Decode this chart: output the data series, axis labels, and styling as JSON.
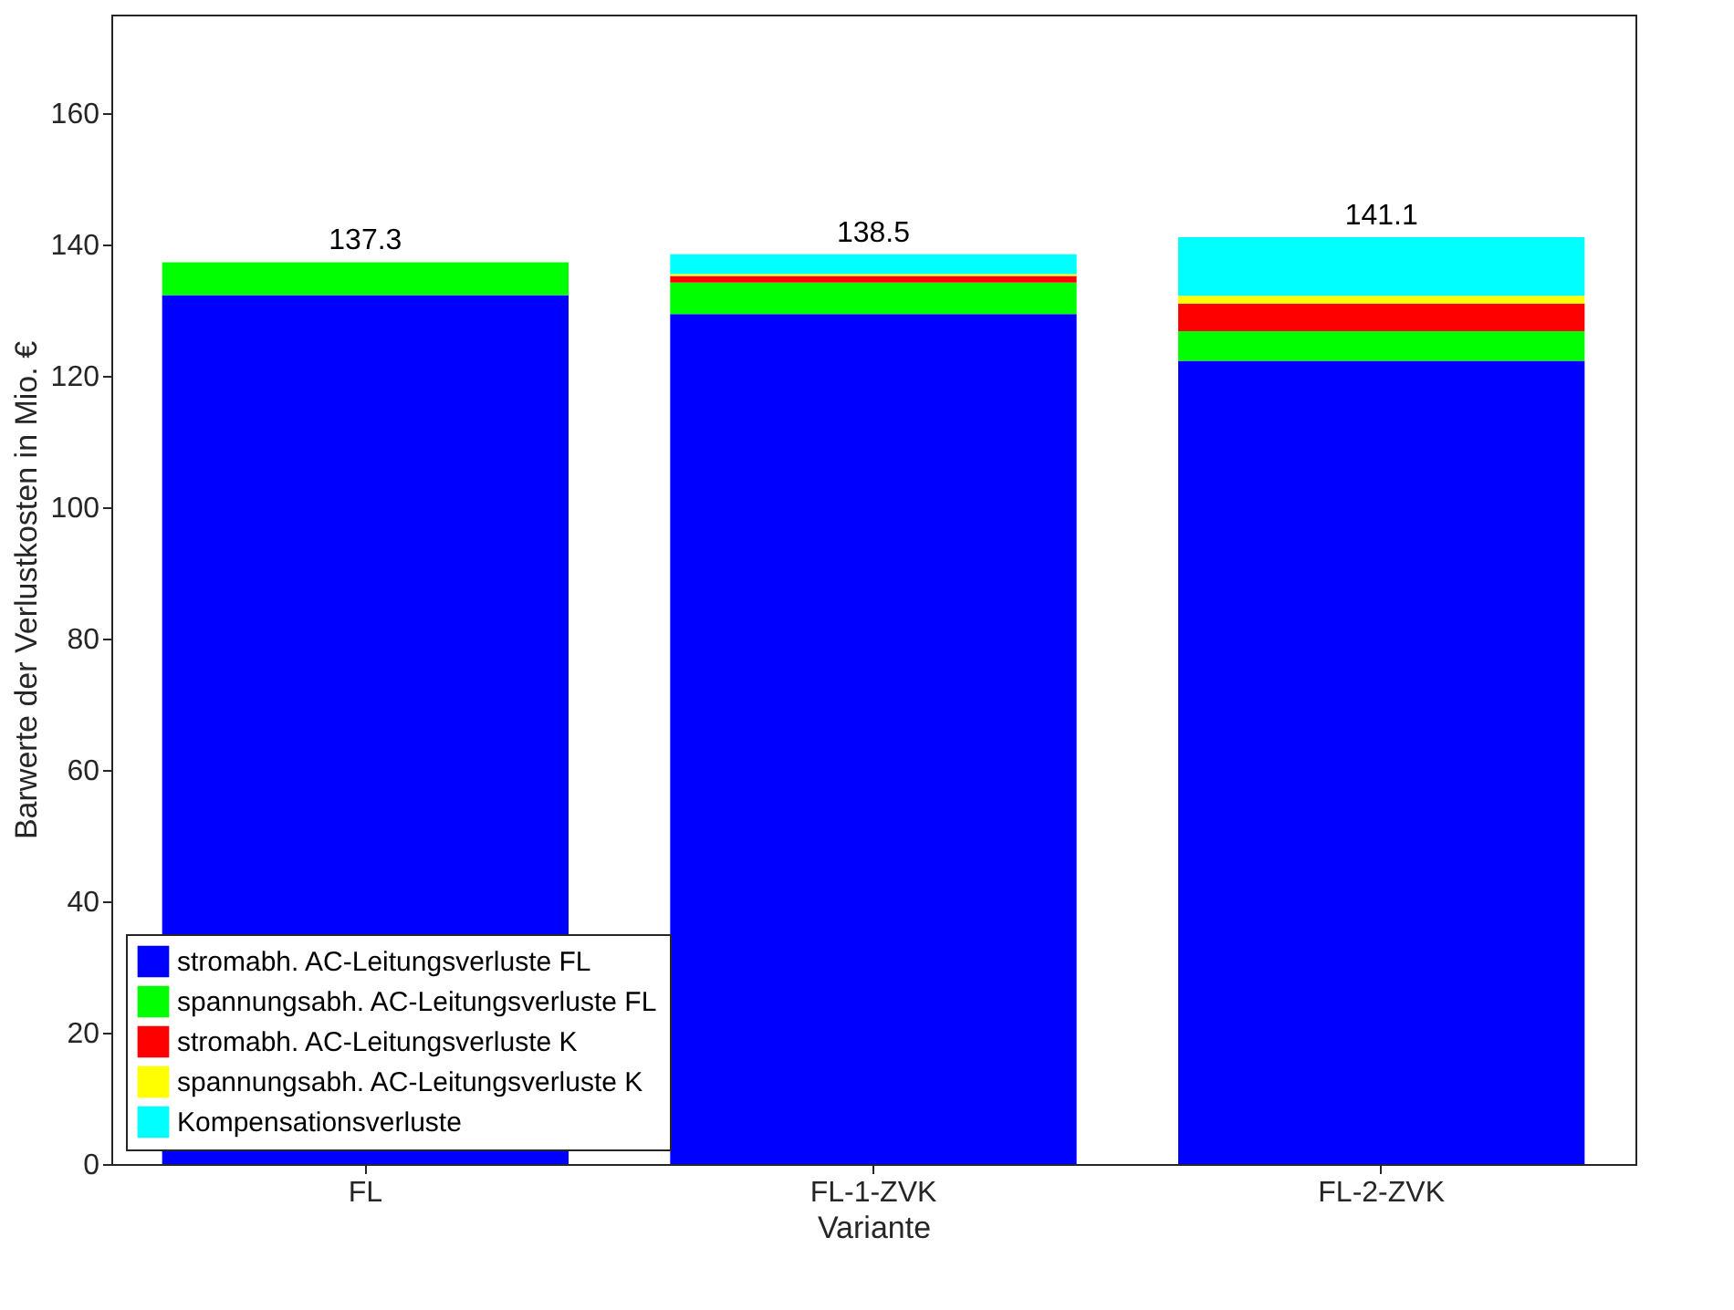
{
  "chart_data": {
    "type": "bar",
    "stacked": true,
    "xlabel": "Variante",
    "ylabel": "Barwerte der Verlustkosten in Mio. €",
    "categories": [
      "FL",
      "FL-1-ZVK",
      "FL-2-ZVK"
    ],
    "series": [
      {
        "name": "stromabh. AC-Leitungsverluste FL",
        "color": "#0000ff",
        "values": [
          132.3,
          129.4,
          122.3
        ]
      },
      {
        "name": "spannungsabh. AC-Leitungsverluste FL",
        "color": "#00ff00",
        "values": [
          5.0,
          4.8,
          4.5
        ]
      },
      {
        "name": "stromabh. AC-Leitungsverluste K",
        "color": "#ff0000",
        "values": [
          0,
          1.0,
          4.2
        ]
      },
      {
        "name": "spannungsabh. AC-Leitungsverluste K",
        "color": "#ffff00",
        "values": [
          0,
          0.3,
          1.2
        ]
      },
      {
        "name": "Kompensationsverluste",
        "color": "#00ffff",
        "values": [
          0,
          3.0,
          8.9
        ]
      }
    ],
    "totals": [
      "137.3",
      "138.5",
      "141.1"
    ],
    "ylim": [
      0,
      175
    ],
    "yticks": [
      0,
      20,
      40,
      60,
      80,
      100,
      120,
      140,
      160
    ],
    "grid": false,
    "legend": "bottom left"
  }
}
